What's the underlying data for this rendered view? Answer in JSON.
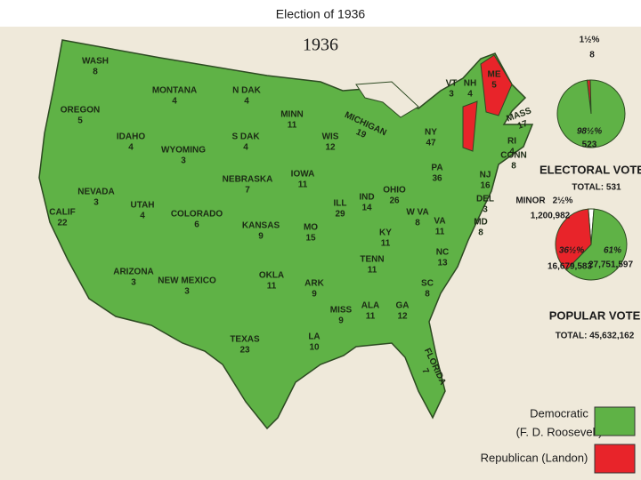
{
  "title": "Election of 1936",
  "map_year": "1936",
  "states": [
    {
      "name": "WASH",
      "votes": 8
    },
    {
      "name": "OREGON",
      "votes": 5
    },
    {
      "name": "CALIF",
      "votes": 22
    },
    {
      "name": "NEVADA",
      "votes": 3
    },
    {
      "name": "IDAHO",
      "votes": 4
    },
    {
      "name": "MONTANA",
      "votes": 4
    },
    {
      "name": "WYOMING",
      "votes": 3
    },
    {
      "name": "UTAH",
      "votes": 4
    },
    {
      "name": "ARIZONA",
      "votes": 3
    },
    {
      "name": "COLORADO",
      "votes": 6
    },
    {
      "name": "NEW MEXICO",
      "votes": 3
    },
    {
      "name": "N DAK",
      "votes": 4
    },
    {
      "name": "S DAK",
      "votes": 4
    },
    {
      "name": "NEBRASKA",
      "votes": 7
    },
    {
      "name": "KANSAS",
      "votes": 9
    },
    {
      "name": "OKLA",
      "votes": 11
    },
    {
      "name": "TEXAS",
      "votes": 23
    },
    {
      "name": "MINN",
      "votes": 11
    },
    {
      "name": "IOWA",
      "votes": 11
    },
    {
      "name": "MO",
      "votes": 15
    },
    {
      "name": "ARK",
      "votes": 9
    },
    {
      "name": "LA",
      "votes": 10
    },
    {
      "name": "WIS",
      "votes": 12
    },
    {
      "name": "MICHIGAN",
      "votes": 19
    },
    {
      "name": "ILL",
      "votes": 29
    },
    {
      "name": "IND",
      "votes": 14
    },
    {
      "name": "OHIO",
      "votes": 26
    },
    {
      "name": "KY",
      "votes": 11
    },
    {
      "name": "TENN",
      "votes": 11
    },
    {
      "name": "MISS",
      "votes": 9
    },
    {
      "name": "ALA",
      "votes": 11
    },
    {
      "name": "GA",
      "votes": 12
    },
    {
      "name": "FLORIDA",
      "votes": 7
    },
    {
      "name": "SC",
      "votes": 8
    },
    {
      "name": "NC",
      "votes": 13
    },
    {
      "name": "VA",
      "votes": 11
    },
    {
      "name": "W VA",
      "votes": 8
    },
    {
      "name": "PA",
      "votes": 36
    },
    {
      "name": "NY",
      "votes": 47
    },
    {
      "name": "VT",
      "votes": 3
    },
    {
      "name": "NH",
      "votes": 4
    },
    {
      "name": "ME",
      "votes": 5
    },
    {
      "name": "MASS",
      "votes": 17
    },
    {
      "name": "RI",
      "votes": 4
    },
    {
      "name": "CONN",
      "votes": 8
    },
    {
      "name": "NJ",
      "votes": 16
    },
    {
      "name": "DEL",
      "votes": 3
    },
    {
      "name": "MD",
      "votes": 8
    }
  ],
  "electoral_vote": {
    "title": "ELECTORAL VOTE",
    "total": "TOTAL: 531",
    "slices": [
      {
        "percent": {
          "value": 1.5,
          "label": "1½%"
        },
        "votes": 8,
        "color": "#e8242a"
      },
      {
        "percent": {
          "value": 98.5,
          "label": "98½%"
        },
        "votes": 523,
        "color": "#5fb246"
      }
    ]
  },
  "popular_vote": {
    "title": "POPULAR VOTE",
    "total": "TOTAL: 45,632,162",
    "slices": [
      {
        "name": "MINOR",
        "percent": {
          "value": 2.5,
          "label": "2½%"
        },
        "votes": {
          "value": 1200982,
          "label": "1,200,982"
        },
        "color": "#ffffff"
      },
      {
        "percent": {
          "value": 61,
          "label": "61%"
        },
        "votes": {
          "value": 27751597,
          "label": "27,751,597"
        },
        "color": "#5fb246"
      },
      {
        "percent": {
          "value": 36.5,
          "label": "36½%"
        },
        "votes": {
          "value": 16679583,
          "label": "16,679,583"
        },
        "color": "#e8242a"
      }
    ]
  },
  "legend": [
    {
      "label": "Democratic",
      "sublabel": "(F. D. Roosevelt)",
      "color": "#5fb246"
    },
    {
      "label": "Republican (Landon)",
      "color": "#e8242a"
    }
  ]
}
